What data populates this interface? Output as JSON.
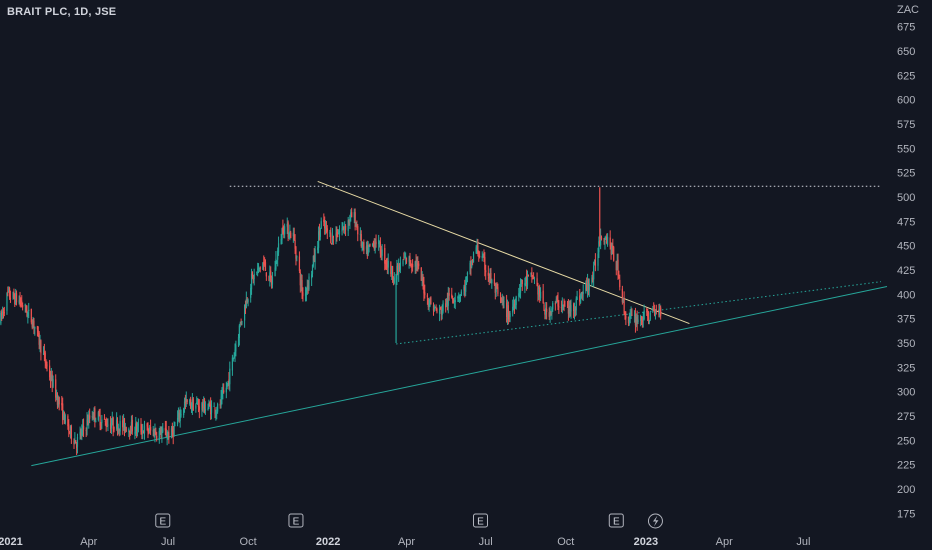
{
  "header": {
    "title": "BRAIT PLC, 1D, JSE"
  },
  "chart_data": {
    "type": "candlestick",
    "title": "BRAIT PLC, 1D, JSE",
    "currency": "ZAC",
    "ylim": [
      165,
      690
    ],
    "y_ticks": [
      175,
      200,
      225,
      250,
      275,
      300,
      325,
      350,
      375,
      400,
      425,
      450,
      475,
      500,
      525,
      550,
      575,
      600,
      625,
      650,
      675
    ],
    "x_ticks": [
      {
        "label": "2021",
        "date": "2021-01-01",
        "year": true
      },
      {
        "label": "Apr",
        "date": "2021-04-01",
        "year": false
      },
      {
        "label": "Jul",
        "date": "2021-07-01",
        "year": false
      },
      {
        "label": "Oct",
        "date": "2021-10-01",
        "year": false
      },
      {
        "label": "2022",
        "date": "2022-01-01",
        "year": true
      },
      {
        "label": "Apr",
        "date": "2022-04-01",
        "year": false
      },
      {
        "label": "Jul",
        "date": "2022-07-01",
        "year": false
      },
      {
        "label": "Oct",
        "date": "2022-10-01",
        "year": false
      },
      {
        "label": "2023",
        "date": "2023-01-01",
        "year": true
      },
      {
        "label": "Apr",
        "date": "2023-04-01",
        "year": false
      },
      {
        "label": "Jul",
        "date": "2023-07-01",
        "year": false
      }
    ],
    "x_range": [
      "2020-12-20",
      "2023-10-05"
    ],
    "price_path": [
      [
        "2020-12-20",
        372
      ],
      [
        "2020-12-29",
        400
      ],
      [
        "2021-01-12",
        393
      ],
      [
        "2021-01-28",
        370
      ],
      [
        "2021-02-12",
        325
      ],
      [
        "2021-02-26",
        288
      ],
      [
        "2021-03-08",
        262
      ],
      [
        "2021-03-18",
        248
      ],
      [
        "2021-04-05",
        278
      ],
      [
        "2021-04-20",
        268
      ],
      [
        "2021-05-10",
        265
      ],
      [
        "2021-05-28",
        262
      ],
      [
        "2021-06-18",
        258
      ],
      [
        "2021-07-05",
        256
      ],
      [
        "2021-07-20",
        288
      ],
      [
        "2021-08-10",
        285
      ],
      [
        "2021-08-28",
        282
      ],
      [
        "2021-09-08",
        310
      ],
      [
        "2021-09-22",
        370
      ],
      [
        "2021-10-05",
        415
      ],
      [
        "2021-10-18",
        432
      ],
      [
        "2021-10-28",
        412
      ],
      [
        "2021-11-10",
        470
      ],
      [
        "2021-11-22",
        460
      ],
      [
        "2021-12-03",
        398
      ],
      [
        "2021-12-12",
        420
      ],
      [
        "2021-12-24",
        472
      ],
      [
        "2022-01-05",
        458
      ],
      [
        "2022-01-18",
        468
      ],
      [
        "2022-01-30",
        482
      ],
      [
        "2022-02-12",
        440
      ],
      [
        "2022-02-25",
        456
      ],
      [
        "2022-03-05",
        440
      ],
      [
        "2022-03-18",
        418
      ],
      [
        "2022-03-30",
        436
      ],
      [
        "2022-04-12",
        432
      ],
      [
        "2022-04-25",
        395
      ],
      [
        "2022-05-08",
        380
      ],
      [
        "2022-05-20",
        396
      ],
      [
        "2022-06-05",
        402
      ],
      [
        "2022-06-20",
        448
      ],
      [
        "2022-07-02",
        425
      ],
      [
        "2022-07-15",
        398
      ],
      [
        "2022-07-28",
        378
      ],
      [
        "2022-08-10",
        410
      ],
      [
        "2022-08-25",
        418
      ],
      [
        "2022-09-08",
        380
      ],
      [
        "2022-09-22",
        392
      ],
      [
        "2022-10-05",
        383
      ],
      [
        "2022-10-18",
        398
      ],
      [
        "2022-11-01",
        418
      ],
      [
        "2022-11-10",
        462
      ],
      [
        "2022-11-18",
        458
      ],
      [
        "2022-11-30",
        425
      ],
      [
        "2022-12-08",
        378
      ],
      [
        "2022-12-18",
        374
      ],
      [
        "2023-01-05",
        378
      ],
      [
        "2023-01-18",
        385
      ]
    ],
    "spikes": [
      {
        "date": "2022-03-20",
        "low": 350
      },
      {
        "date": "2022-11-09",
        "high": 510
      }
    ],
    "earnings_markers": [
      {
        "date": "2021-06-25",
        "label": "E"
      },
      {
        "date": "2021-11-25",
        "label": "E"
      },
      {
        "date": "2022-06-25",
        "label": "E"
      },
      {
        "date": "2022-11-28",
        "label": "E"
      }
    ],
    "dividend_marker": {
      "date": "2023-01-12"
    },
    "drawings": [
      {
        "name": "resistance-dotted-line",
        "style": "dotted",
        "color": "#d1d4dc",
        "points": [
          [
            "2021-09-10",
            511
          ],
          [
            "2023-09-28",
            511
          ]
        ]
      },
      {
        "name": "descending-trendline",
        "style": "solid",
        "color": "#e8dba5",
        "points": [
          [
            "2021-12-20",
            516
          ],
          [
            "2023-02-20",
            370
          ]
        ]
      },
      {
        "name": "rising-support-dotted-line",
        "style": "dotted",
        "color": "#26a69a",
        "points": [
          [
            "2022-03-20",
            349
          ],
          [
            "2023-09-28",
            413
          ]
        ]
      },
      {
        "name": "long-term-trendline",
        "style": "solid",
        "color": "#26a69a",
        "points": [
          [
            "2021-01-25",
            224
          ],
          [
            "2023-10-05",
            408
          ]
        ]
      }
    ],
    "colors": {
      "up": "#26a69a",
      "down": "#ef5350",
      "background": "#131722",
      "text": "#b2b5be"
    }
  }
}
